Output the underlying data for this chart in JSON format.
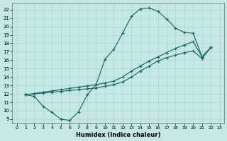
{
  "xlabel": "Humidex (Indice chaleur)",
  "xlim": [
    -0.5,
    23.5
  ],
  "ylim": [
    8.5,
    22.8
  ],
  "xticks": [
    0,
    1,
    2,
    3,
    4,
    5,
    6,
    7,
    8,
    9,
    10,
    11,
    12,
    13,
    14,
    15,
    16,
    17,
    18,
    19,
    20,
    21,
    22,
    23
  ],
  "yticks": [
    9,
    10,
    11,
    12,
    13,
    14,
    15,
    16,
    17,
    18,
    19,
    20,
    21,
    22
  ],
  "bg_color": "#c5e8e5",
  "line_color": "#1a6b65",
  "curve1_x": [
    1,
    2,
    3,
    4,
    5,
    6,
    7,
    8,
    9,
    10,
    11,
    12,
    13,
    14,
    15,
    16,
    17,
    18,
    19,
    20,
    21,
    22
  ],
  "curve1_y": [
    11.9,
    11.7,
    10.5,
    9.8,
    9.0,
    8.85,
    9.85,
    11.9,
    13.1,
    16.1,
    17.3,
    19.2,
    21.2,
    22.1,
    22.2,
    21.8,
    20.9,
    19.8,
    19.3,
    19.2,
    16.4,
    17.5
  ],
  "curve2_x": [
    1,
    2,
    3,
    4,
    5,
    6,
    7,
    8,
    9,
    10,
    11,
    12,
    13,
    14,
    15,
    16,
    17,
    18,
    19,
    20,
    21,
    22
  ],
  "curve2_y": [
    11.9,
    12.05,
    12.2,
    12.35,
    12.5,
    12.65,
    12.8,
    12.95,
    13.1,
    13.3,
    13.5,
    14.0,
    14.7,
    15.3,
    15.9,
    16.4,
    16.9,
    17.4,
    17.8,
    18.2,
    16.4,
    17.5
  ],
  "curve3_x": [
    1,
    2,
    3,
    4,
    5,
    6,
    7,
    8,
    9,
    10,
    11,
    12,
    13,
    14,
    15,
    16,
    17,
    18,
    19,
    20,
    21,
    22
  ],
  "curve3_y": [
    11.9,
    12.0,
    12.1,
    12.2,
    12.3,
    12.4,
    12.5,
    12.6,
    12.7,
    12.9,
    13.1,
    13.4,
    14.0,
    14.7,
    15.3,
    15.9,
    16.3,
    16.6,
    16.9,
    17.1,
    16.2,
    17.5
  ]
}
